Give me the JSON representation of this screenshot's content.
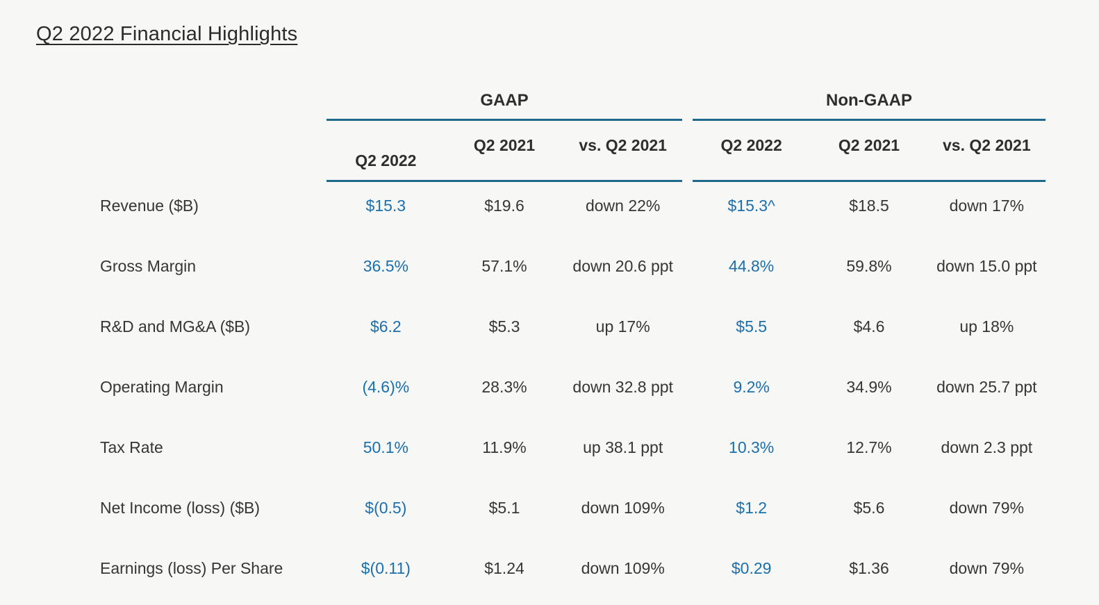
{
  "page": {
    "title": "Q2 2022 Financial Highlights"
  },
  "colors": {
    "background": "#f7f7f6",
    "accent_blue": "#1b6fad",
    "rule_teal": "#1e698c",
    "text": "#363636"
  },
  "table": {
    "group_headers": [
      "GAAP",
      "Non-GAAP"
    ],
    "sub_headers": [
      "Q2 2022",
      "Q2 2021",
      "vs. Q2 2021"
    ],
    "rows": [
      {
        "label": "Revenue ($B)",
        "gaap": [
          "$15.3",
          "$19.6",
          "down 22%"
        ],
        "non_gaap": [
          "$15.3^",
          "$18.5",
          "down 17%"
        ]
      },
      {
        "label": "Gross Margin",
        "gaap": [
          "36.5%",
          "57.1%",
          "down 20.6 ppt"
        ],
        "non_gaap": [
          "44.8%",
          "59.8%",
          "down 15.0 ppt"
        ]
      },
      {
        "label": "R&D and MG&A ($B)",
        "gaap": [
          "$6.2",
          "$5.3",
          "up 17%"
        ],
        "non_gaap": [
          "$5.5",
          "$4.6",
          "up 18%"
        ]
      },
      {
        "label": "Operating Margin",
        "gaap": [
          "(4.6)%",
          "28.3%",
          "down 32.8 ppt"
        ],
        "non_gaap": [
          "9.2%",
          "34.9%",
          "down 25.7 ppt"
        ]
      },
      {
        "label": "Tax Rate",
        "gaap": [
          "50.1%",
          "11.9%",
          "up 38.1 ppt"
        ],
        "non_gaap": [
          "10.3%",
          "12.7%",
          "down 2.3 ppt"
        ]
      },
      {
        "label": "Net Income (loss) ($B)",
        "gaap": [
          "$(0.5)",
          "$5.1",
          "down 109%"
        ],
        "non_gaap": [
          "$1.2",
          "$5.6",
          "down 79%"
        ]
      },
      {
        "label": "Earnings (loss) Per Share",
        "gaap": [
          "$(0.11)",
          "$1.24",
          "down 109%"
        ],
        "non_gaap": [
          "$0.29",
          "$1.36",
          "down 79%"
        ]
      }
    ]
  }
}
